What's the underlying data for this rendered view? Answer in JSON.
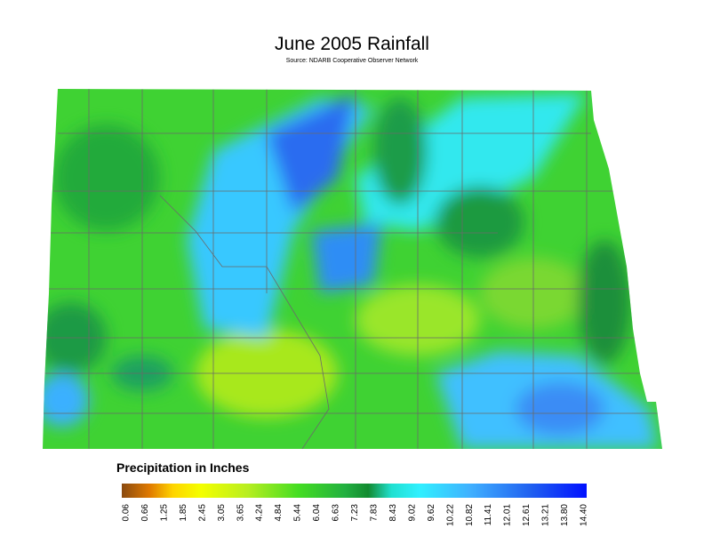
{
  "header": {
    "title": "June 2005 Rainfall",
    "subtitle": "Source: NDARB Cooperative Observer Network"
  },
  "legend": {
    "title": "Precipitation in Inches",
    "ticks": [
      "0.06",
      "0.66",
      "1.25",
      "1.85",
      "2.45",
      "3.05",
      "3.65",
      "4.24",
      "4.84",
      "5.44",
      "6.04",
      "6.63",
      "7.23",
      "7.83",
      "8.43",
      "9.02",
      "9.62",
      "10.22",
      "10.82",
      "11.41",
      "12.01",
      "12.61",
      "13.21",
      "13.80",
      "14.40"
    ]
  }
}
